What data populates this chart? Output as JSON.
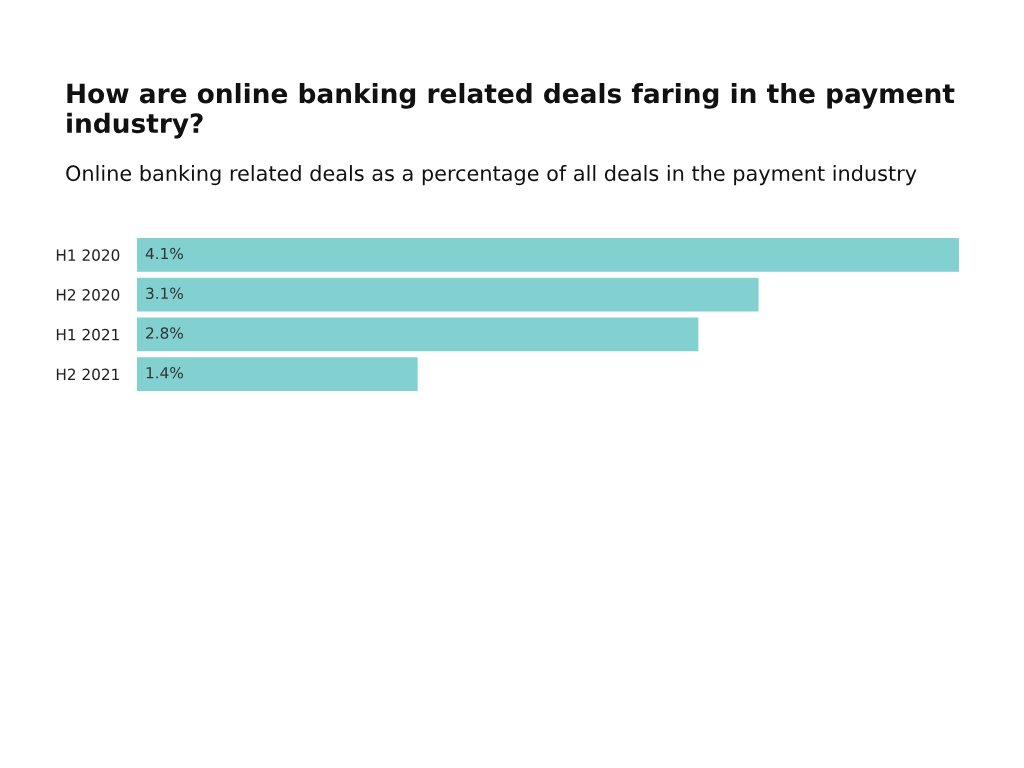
{
  "chart_data": {
    "type": "bar",
    "orientation": "horizontal",
    "title": "How are online banking related deals faring in the payment industry?",
    "subtitle": "Online banking related deals as a percentage of all deals in the payment industry",
    "categories": [
      "H1 2020",
      "H2 2020",
      "H1 2021",
      "H2 2021"
    ],
    "values": [
      4.1,
      3.1,
      2.8,
      1.4
    ],
    "value_labels": [
      "4.1%",
      "3.1%",
      "2.8%",
      "1.4%"
    ],
    "color": "#82d1d0",
    "grid": false,
    "legend": false,
    "tick_labels": "y"
  }
}
